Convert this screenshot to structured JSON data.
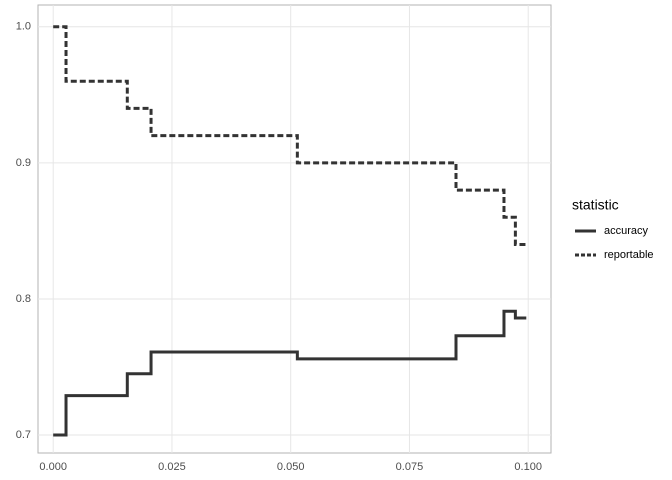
{
  "chart_data": {
    "type": "step",
    "x": [
      0.0,
      0.0027,
      0.0156,
      0.0206,
      0.0514,
      0.0848,
      0.0949,
      0.0973,
      0.0996
    ],
    "series": [
      {
        "name": "accuracy",
        "color": "#333333",
        "dash": "solid",
        "values": [
          0.7,
          0.729,
          0.745,
          0.761,
          0.756,
          0.773,
          0.791,
          0.786,
          0.786
        ]
      },
      {
        "name": "reportable",
        "color": "#333333",
        "dash": "dashed",
        "values": [
          1.0,
          0.96,
          0.94,
          0.92,
          0.9,
          0.88,
          0.86,
          0.84,
          0.84
        ]
      }
    ],
    "xlim": [
      -0.0032,
      0.1048
    ],
    "ylim": [
      0.6868,
      1.016
    ],
    "xticks": [
      {
        "value": 0,
        "label": "0.000"
      },
      {
        "value": 0.025,
        "label": "0.025"
      },
      {
        "value": 0.05,
        "label": "0.050"
      },
      {
        "value": 0.075,
        "label": "0.075"
      },
      {
        "value": 0.1,
        "label": "0.100"
      }
    ],
    "yticks": [
      {
        "value": 0.7,
        "label": "0.7"
      },
      {
        "value": 0.8,
        "label": "0.8"
      },
      {
        "value": 0.9,
        "label": "0.9"
      },
      {
        "value": 1.0,
        "label": "1.0"
      }
    ],
    "grid": true,
    "legend_title": "statistic",
    "legend_position": "right"
  }
}
